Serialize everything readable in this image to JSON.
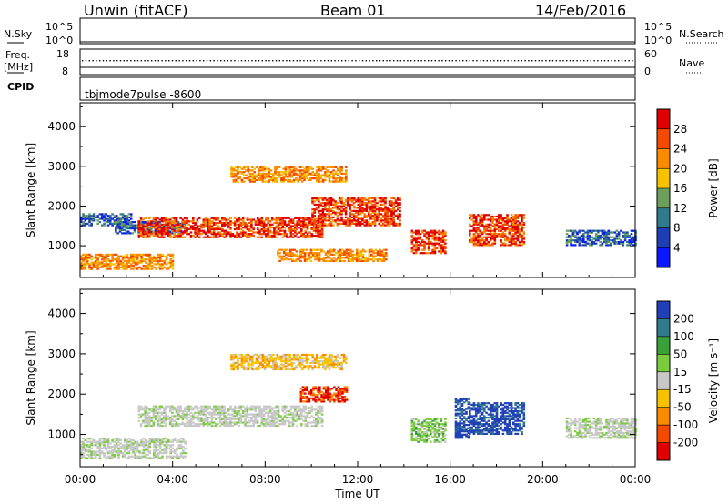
{
  "header": {
    "station": "Unwin (fitACF)",
    "beam": "Beam 01",
    "date": "14/Feb/2016"
  },
  "top_panels": {
    "nsky_label": "N.Sky",
    "nsky_ticks": [
      "10^5",
      "10^0"
    ],
    "nsearch_label": "N.Search",
    "nsearch_ticks": [
      "10^5",
      "10^0"
    ],
    "freq_label": "Freq.",
    "freq_unit": "[MHz]",
    "freq_ticks": [
      "18",
      "8"
    ],
    "nave_label": "Nave",
    "nave_ticks": [
      "60",
      "0"
    ],
    "cpid_label": "CPID",
    "cpid_value": "tbjmode7pulse -8600"
  },
  "chart_data": [
    {
      "type": "heatmap",
      "panel": "power",
      "ylabel": "Slant Range [km]",
      "xlabel": "",
      "ylim": [
        200,
        4600
      ],
      "xlim_hours": [
        0,
        24
      ],
      "yticks": [
        1000,
        2000,
        3000,
        4000
      ],
      "xticks": [
        "00:00",
        "04:00",
        "08:00",
        "12:00",
        "16:00",
        "20:00",
        "00:00"
      ],
      "colorbar": {
        "label": "Power [dB]",
        "ticks": [
          "28",
          "24",
          "20",
          "16",
          "12",
          "8",
          "4"
        ],
        "colors": [
          "#e00000",
          "#f34a00",
          "#fa8a00",
          "#f7c200",
          "#6c9f5a",
          "#2f7a8c",
          "#1e3fb4",
          "#0a18ff"
        ]
      },
      "echo_regions": [
        {
          "t": [
            0.0,
            2.2
          ],
          "range": [
            1500,
            1800
          ],
          "level": "low"
        },
        {
          "t": [
            1.5,
            4.5
          ],
          "range": [
            1300,
            1600
          ],
          "level": "low"
        },
        {
          "t": [
            0.0,
            4.0
          ],
          "range": [
            400,
            800
          ],
          "level": "medium"
        },
        {
          "t": [
            2.5,
            10.5
          ],
          "range": [
            1200,
            1700
          ],
          "level": "high"
        },
        {
          "t": [
            6.5,
            11.5
          ],
          "range": [
            2600,
            3000
          ],
          "level": "medium"
        },
        {
          "t": [
            10.0,
            13.8
          ],
          "range": [
            1500,
            2200
          ],
          "level": "high"
        },
        {
          "t": [
            8.5,
            13.2
          ],
          "range": [
            600,
            900
          ],
          "level": "medium"
        },
        {
          "t": [
            14.3,
            15.8
          ],
          "range": [
            800,
            1400
          ],
          "level": "high"
        },
        {
          "t": [
            16.8,
            19.2
          ],
          "range": [
            1000,
            1800
          ],
          "level": "high"
        },
        {
          "t": [
            21.0,
            24.0
          ],
          "range": [
            1000,
            1400
          ],
          "level": "low"
        }
      ]
    },
    {
      "type": "heatmap",
      "panel": "velocity",
      "ylabel": "Slant Range [km]",
      "xlabel": "Time UT",
      "ylim": [
        200,
        4600
      ],
      "xlim_hours": [
        0,
        24
      ],
      "yticks": [
        1000,
        2000,
        3000,
        4000
      ],
      "xticks": [
        "00:00",
        "04:00",
        "08:00",
        "12:00",
        "16:00",
        "20:00",
        "00:00"
      ],
      "colorbar": {
        "label": "Velocity [m s⁻¹]",
        "ticks": [
          "200",
          "100",
          "50",
          "15",
          "-15",
          "-50",
          "-100",
          "-200"
        ],
        "colors": [
          "#2140b8",
          "#2f7a8c",
          "#3aa13a",
          "#7acc3c",
          "#c8c8c8",
          "#f7c200",
          "#fa8a00",
          "#f34a00",
          "#e00000"
        ]
      },
      "echo_regions": [
        {
          "t": [
            0.0,
            4.5
          ],
          "range": [
            400,
            900
          ],
          "level": "ground"
        },
        {
          "t": [
            2.5,
            10.5
          ],
          "range": [
            1200,
            1700
          ],
          "level": "ground"
        },
        {
          "t": [
            6.5,
            11.5
          ],
          "range": [
            2600,
            3000
          ],
          "level": "slightly-negative"
        },
        {
          "t": [
            9.5,
            11.5
          ],
          "range": [
            1800,
            2200
          ],
          "level": "negative"
        },
        {
          "t": [
            14.3,
            15.8
          ],
          "range": [
            800,
            1400
          ],
          "level": "positive"
        },
        {
          "t": [
            16.2,
            16.8
          ],
          "range": [
            900,
            1900
          ],
          "level": "strong-positive"
        },
        {
          "t": [
            16.8,
            19.2
          ],
          "range": [
            1000,
            1800
          ],
          "level": "strong-positive"
        },
        {
          "t": [
            21.0,
            24.0
          ],
          "range": [
            900,
            1400
          ],
          "level": "ground"
        }
      ]
    }
  ]
}
